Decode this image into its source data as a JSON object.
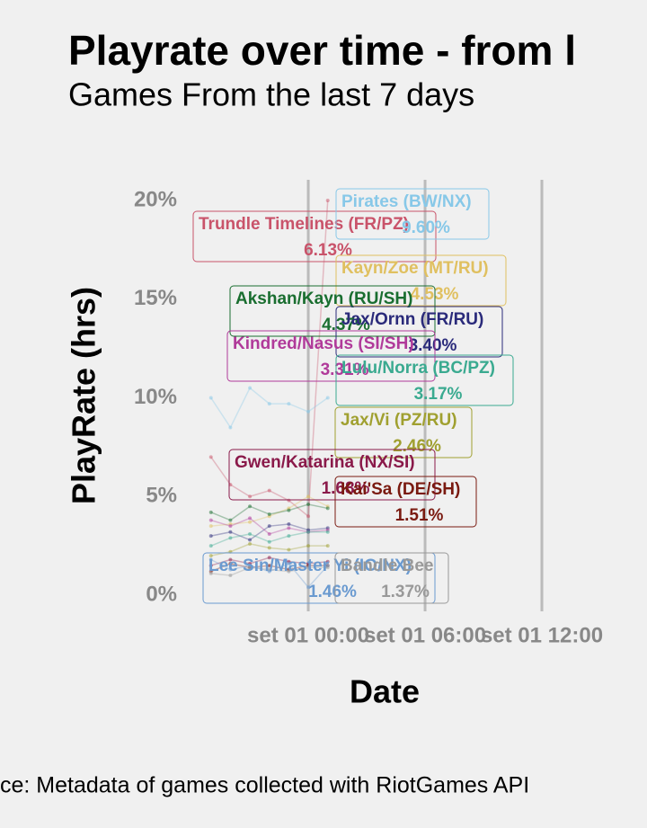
{
  "chart_data": {
    "type": "line",
    "title": "Playrate over time - from l",
    "subtitle": "Games From the last 7 days",
    "x_label": "Date",
    "y_label": "PlayRate (hrs)",
    "caption": "ce: Metadata of games collected with RiotGames API",
    "x": [
      -5,
      -4,
      -3,
      -2,
      -1,
      0,
      1
    ],
    "xlim": [
      -5.45,
      17.4
    ],
    "xticks": [
      {
        "value": 0,
        "label": "set 01 00:00"
      },
      {
        "value": 6,
        "label": "set 01 06:00"
      },
      {
        "value": 12,
        "label": "set 01 12:00"
      }
    ],
    "ylim": [
      -0.82,
      21.05
    ],
    "yticks": [
      {
        "value": 0,
        "label": "0%"
      },
      {
        "value": 5,
        "label": "5%"
      },
      {
        "value": 10,
        "label": "10%"
      },
      {
        "value": 15,
        "label": "15%"
      },
      {
        "value": 20,
        "label": "20%"
      }
    ],
    "grid": true,
    "series": [
      {
        "name": "Trundle Timelines (FR/PZ)",
        "label": "6.13%",
        "color": "#c9536a",
        "values": [
          7.0,
          5.6,
          5.0,
          5.3,
          4.8,
          4.0,
          20.0
        ]
      },
      {
        "name": "Pirates (BW/NX)",
        "label": "9.60%",
        "color": "#87c8e8",
        "values": [
          10.0,
          8.5,
          10.5,
          9.7,
          9.7,
          9.3,
          10.0
        ]
      },
      {
        "name": "Kayn/Zoe (MT/RU)",
        "label": "4.53%",
        "color": "#e0c060",
        "values": [
          3.5,
          3.6,
          3.7,
          4.0,
          4.4,
          5.0,
          4.5
        ]
      },
      {
        "name": "Akshan/Kayn (RU/SH)",
        "label": "4.37%",
        "color": "#1a6e30",
        "values": [
          4.2,
          3.8,
          4.5,
          4.1,
          4.3,
          4.6,
          4.4
        ]
      },
      {
        "name": "Jax/Ornn (FR/RU)",
        "label": "3.40%",
        "color": "#2a2a7a",
        "values": [
          3.0,
          3.2,
          2.8,
          3.5,
          3.6,
          3.3,
          3.4
        ]
      },
      {
        "name": "Kindred/Nasus (SI/SH)",
        "label": "3.31%",
        "color": "#b03a9a",
        "values": [
          3.8,
          3.5,
          3.9,
          3.1,
          3.4,
          3.2,
          3.3
        ]
      },
      {
        "name": "Lulu/Norra (BC/PZ)",
        "label": "3.17%",
        "color": "#3aaa90",
        "values": [
          2.5,
          2.9,
          3.1,
          2.7,
          3.0,
          3.2,
          3.2
        ]
      },
      {
        "name": "Jax/Vi (PZ/RU)",
        "label": "2.46%",
        "color": "#a0a030",
        "values": [
          2.0,
          2.2,
          2.6,
          2.4,
          2.3,
          2.5,
          2.5
        ]
      },
      {
        "name": "Gwen/Katarina (NX/SI)",
        "label": "1.68%",
        "color": "#8a1a4a",
        "values": [
          1.5,
          1.8,
          1.6,
          1.9,
          1.7,
          1.6,
          1.7
        ]
      },
      {
        "name": "Kai'Sa (DE/SH)",
        "label": "1.51%",
        "color": "#7a1a10",
        "values": [
          1.2,
          1.6,
          1.4,
          1.5,
          1.3,
          1.5,
          1.5
        ]
      },
      {
        "name": "Lee Sin/Master Yi (IO/NX)",
        "label": "1.46%",
        "color": "#6a9ad0",
        "values": [
          1.8,
          1.3,
          1.5,
          1.2,
          1.6,
          0.4,
          1.5
        ]
      },
      {
        "name": "Bandle Bee",
        "label": "1.37%",
        "color": "#999999",
        "values": [
          1.1,
          1.0,
          1.4,
          1.3,
          1.2,
          1.4,
          1.4
        ]
      }
    ]
  }
}
